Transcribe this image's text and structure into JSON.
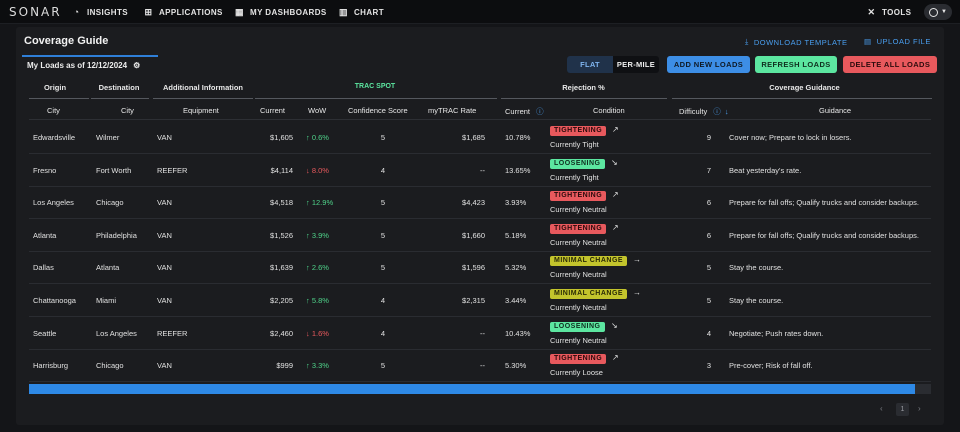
{
  "nav": {
    "logo": "SONAR",
    "items": [
      {
        "label": "INSIGHTS",
        "icon": "◔"
      },
      {
        "label": "APPLICATIONS",
        "icon": "⊞"
      },
      {
        "label": "MY DASHBOARDS",
        "icon": "▦"
      },
      {
        "label": "CHART",
        "icon": "▥"
      }
    ],
    "tools": {
      "label": "TOOLS",
      "icon": "✕"
    }
  },
  "panel": {
    "title": "Coverage Guide",
    "download_template": "DOWNLOAD TEMPLATE",
    "upload_file": "UPLOAD FILE",
    "loads_tab": "My Loads as of 12/12/2024"
  },
  "toolbar": {
    "flat": "FLAT",
    "per_mile": "PER-MILE",
    "add_new_loads": "ADD NEW LOADS",
    "refresh_loads": "REFRESH LOADS",
    "delete_all_loads": "DELETE ALL LOADS"
  },
  "colors": {
    "accent": "#2e89e6",
    "tightening": "#e8595d",
    "loosening": "#5ce6a0",
    "minimal": "#c3c42c",
    "trac_spot": "#5ce6a0"
  },
  "table": {
    "groups": {
      "origin": "Origin",
      "destination": "Destination",
      "additional": "Additional Information",
      "trac_spot": "TRAC SPOT",
      "rejection": "Rejection %",
      "coverage": "Coverage Guidance"
    },
    "headers": {
      "city_o": "City",
      "city_d": "City",
      "equipment": "Equipment",
      "current": "Current",
      "wow": "WoW",
      "confidence": "Confidence Score",
      "mytrac": "myTRAC Rate",
      "rej_current": "Current",
      "condition": "Condition",
      "difficulty": "Difficulty",
      "guidance": "Guidance"
    },
    "rows": [
      {
        "origin": "Edwardsville",
        "dest": "Wilmer",
        "equip": "VAN",
        "current": "$1,605",
        "wow": "0.6%",
        "dir": "up",
        "conf": "5",
        "mytrac": "$1,685",
        "rej": "10.78%",
        "badge": "TIGHTENING",
        "btype": "tight",
        "trend": "↗",
        "cond": "Currently Tight",
        "diff": "9",
        "guide": "Cover now; Prepare to lock in losers."
      },
      {
        "origin": "Fresno",
        "dest": "Fort Worth",
        "equip": "REEFER",
        "current": "$4,114",
        "wow": "8.0%",
        "dir": "down",
        "conf": "4",
        "mytrac": "--",
        "rej": "13.65%",
        "badge": "LOOSENING",
        "btype": "loose",
        "trend": "↘",
        "cond": "Currently Tight",
        "diff": "7",
        "guide": "Beat yesterday's rate."
      },
      {
        "origin": "Los Angeles",
        "dest": "Chicago",
        "equip": "VAN",
        "current": "$4,518",
        "wow": "12.9%",
        "dir": "up",
        "conf": "5",
        "mytrac": "$4,423",
        "rej": "3.93%",
        "badge": "TIGHTENING",
        "btype": "tight",
        "trend": "↗",
        "cond": "Currently Neutral",
        "diff": "6",
        "guide": "Prepare for fall offs; Qualify trucks and consider backups."
      },
      {
        "origin": "Atlanta",
        "dest": "Philadelphia",
        "equip": "VAN",
        "current": "$1,526",
        "wow": "3.9%",
        "dir": "up",
        "conf": "5",
        "mytrac": "$1,660",
        "rej": "5.18%",
        "badge": "TIGHTENING",
        "btype": "tight",
        "trend": "↗",
        "cond": "Currently Neutral",
        "diff": "6",
        "guide": "Prepare for fall offs; Qualify trucks and consider backups."
      },
      {
        "origin": "Dallas",
        "dest": "Atlanta",
        "equip": "VAN",
        "current": "$1,639",
        "wow": "2.6%",
        "dir": "up",
        "conf": "5",
        "mytrac": "$1,596",
        "rej": "5.32%",
        "badge": "MINIMAL CHANGE",
        "btype": "min",
        "trend": "→",
        "cond": "Currently Neutral",
        "diff": "5",
        "guide": "Stay the course."
      },
      {
        "origin": "Chattanooga",
        "dest": "Miami",
        "equip": "VAN",
        "current": "$2,205",
        "wow": "5.8%",
        "dir": "up",
        "conf": "4",
        "mytrac": "$2,315",
        "rej": "3.44%",
        "badge": "MINIMAL CHANGE",
        "btype": "min",
        "trend": "→",
        "cond": "Currently Neutral",
        "diff": "5",
        "guide": "Stay the course."
      },
      {
        "origin": "Seattle",
        "dest": "Los Angeles",
        "equip": "REEFER",
        "current": "$2,460",
        "wow": "1.6%",
        "dir": "down",
        "conf": "4",
        "mytrac": "--",
        "rej": "10.43%",
        "badge": "LOOSENING",
        "btype": "loose",
        "trend": "↘",
        "cond": "Currently Neutral",
        "diff": "4",
        "guide": "Negotiate; Push rates down."
      },
      {
        "origin": "Harrisburg",
        "dest": "Chicago",
        "equip": "VAN",
        "current": "$999",
        "wow": "3.3%",
        "dir": "up",
        "conf": "5",
        "mytrac": "--",
        "rej": "5.30%",
        "badge": "TIGHTENING",
        "btype": "tight",
        "trend": "↗",
        "cond": "Currently Loose",
        "diff": "3",
        "guide": "Pre-cover; Risk of fall off."
      }
    ]
  },
  "pager": {
    "page": "1",
    "prev": "‹",
    "next": "›"
  }
}
